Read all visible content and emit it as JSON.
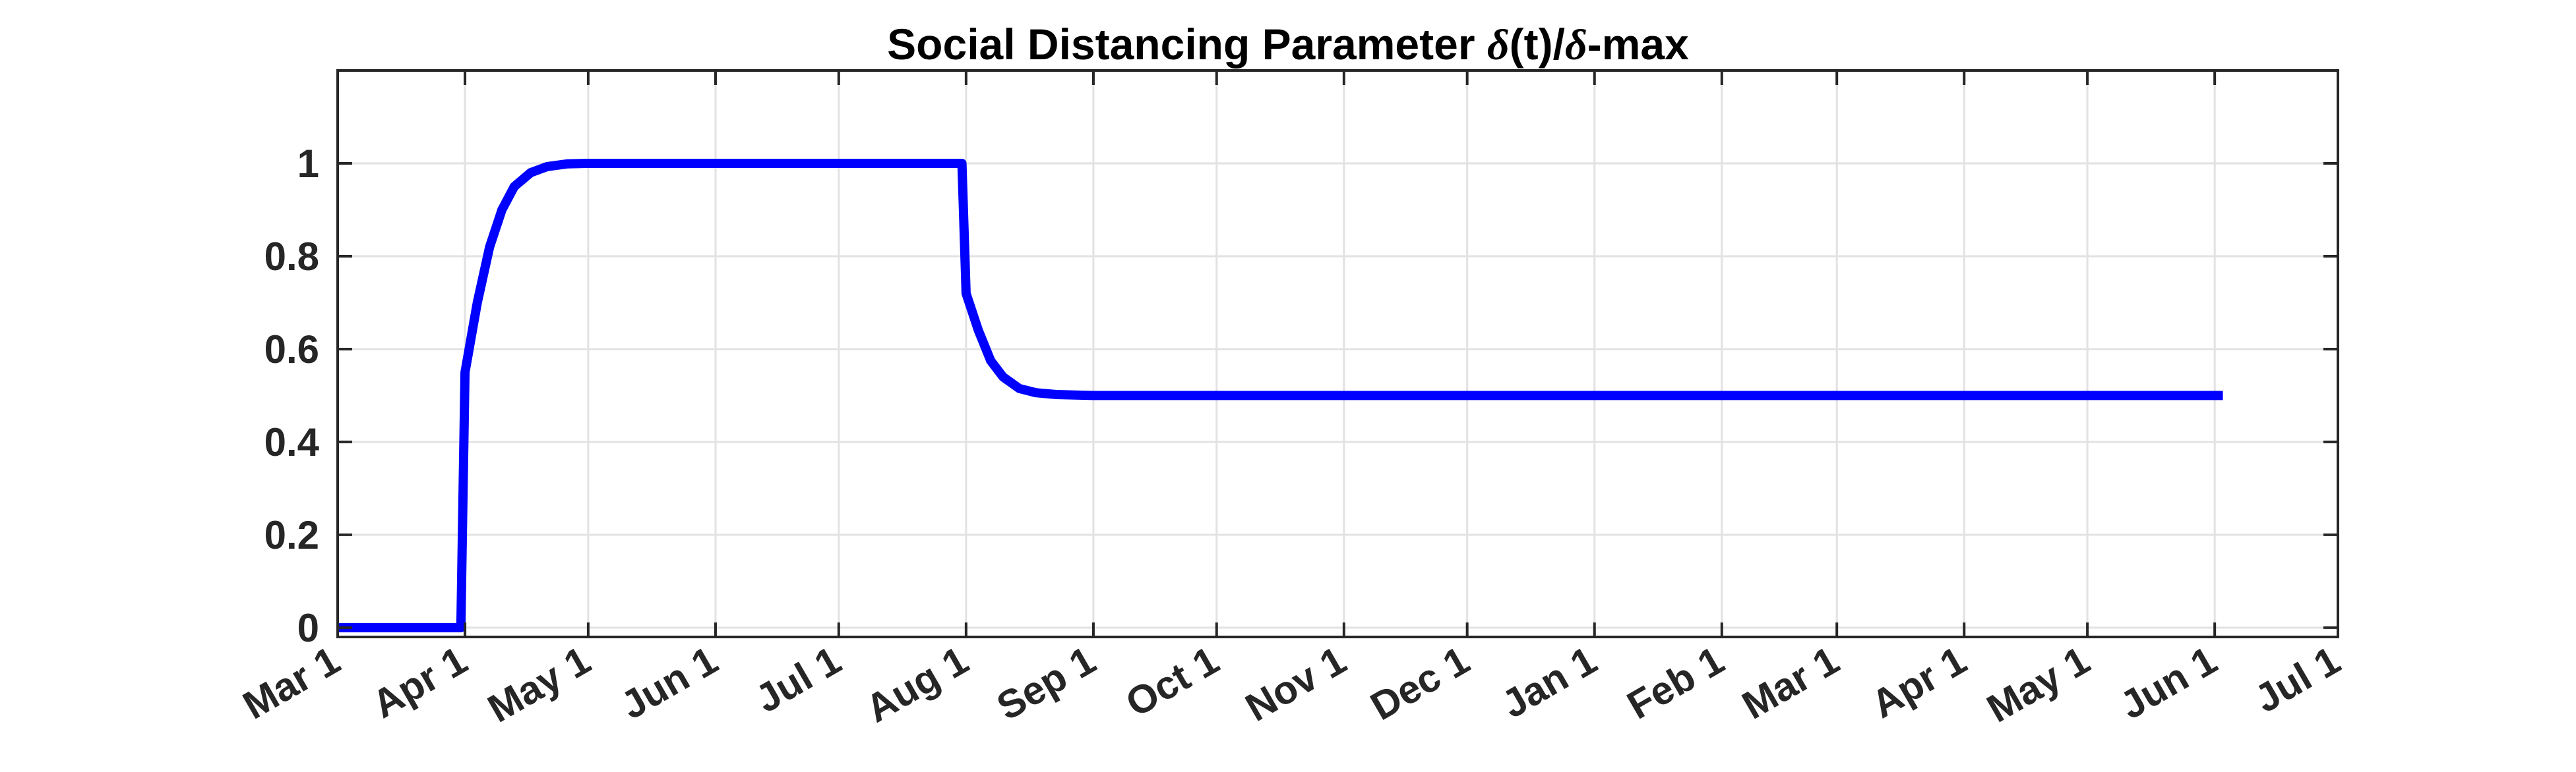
{
  "chart_data": {
    "type": "line",
    "title": "Social Distancing Parameter δ(t)/δ-max",
    "title_parts": [
      "Social Distancing Parameter ",
      "δ",
      "(t)/",
      "δ",
      "-max"
    ],
    "xlabel": "",
    "ylabel": "",
    "x_is_date": true,
    "xlim": [
      "2020-03-01",
      "2021-07-01"
    ],
    "ylim": [
      -0.02,
      1.2
    ],
    "grid": true,
    "xticks": [
      {
        "date": "2020-03-01",
        "label": "Mar 1"
      },
      {
        "date": "2020-04-01",
        "label": "Apr 1"
      },
      {
        "date": "2020-05-01",
        "label": "May 1"
      },
      {
        "date": "2020-06-01",
        "label": "Jun 1"
      },
      {
        "date": "2020-07-01",
        "label": "Jul 1"
      },
      {
        "date": "2020-08-01",
        "label": "Aug 1"
      },
      {
        "date": "2020-09-01",
        "label": "Sep 1"
      },
      {
        "date": "2020-10-01",
        "label": "Oct 1"
      },
      {
        "date": "2020-11-01",
        "label": "Nov 1"
      },
      {
        "date": "2020-12-01",
        "label": "Dec 1"
      },
      {
        "date": "2021-01-01",
        "label": "Jan 1"
      },
      {
        "date": "2021-02-01",
        "label": "Feb 1"
      },
      {
        "date": "2021-03-01",
        "label": "Mar 1"
      },
      {
        "date": "2021-04-01",
        "label": "Apr 1"
      },
      {
        "date": "2021-05-01",
        "label": "May 1"
      },
      {
        "date": "2021-06-01",
        "label": "Jun 1"
      },
      {
        "date": "2021-07-01",
        "label": "Jul 1"
      }
    ],
    "yticks": [
      {
        "value": 0,
        "label": "0"
      },
      {
        "value": 0.2,
        "label": "0.2"
      },
      {
        "value": 0.4,
        "label": "0.4"
      },
      {
        "value": 0.6,
        "label": "0.6"
      },
      {
        "value": 0.8,
        "label": "0.8"
      },
      {
        "value": 1,
        "label": "1"
      }
    ],
    "series": [
      {
        "color": "#0000ff",
        "points": [
          [
            "2020-03-01",
            0
          ],
          [
            "2020-03-31",
            0
          ],
          [
            "2020-04-01",
            0.55
          ],
          [
            "2020-04-04",
            0.7
          ],
          [
            "2020-04-07",
            0.82
          ],
          [
            "2020-04-10",
            0.9
          ],
          [
            "2020-04-13",
            0.95
          ],
          [
            "2020-04-17",
            0.98
          ],
          [
            "2020-04-21",
            0.993
          ],
          [
            "2020-04-26",
            0.999
          ],
          [
            "2020-05-01",
            1.0
          ],
          [
            "2020-07-31",
            1.0
          ],
          [
            "2020-08-01",
            0.72
          ],
          [
            "2020-08-04",
            0.64
          ],
          [
            "2020-08-07",
            0.575
          ],
          [
            "2020-08-10",
            0.54
          ],
          [
            "2020-08-14",
            0.515
          ],
          [
            "2020-08-18",
            0.506
          ],
          [
            "2020-08-23",
            0.502
          ],
          [
            "2020-09-01",
            0.5
          ],
          [
            "2021-06-03",
            0.5
          ]
        ]
      }
    ]
  }
}
